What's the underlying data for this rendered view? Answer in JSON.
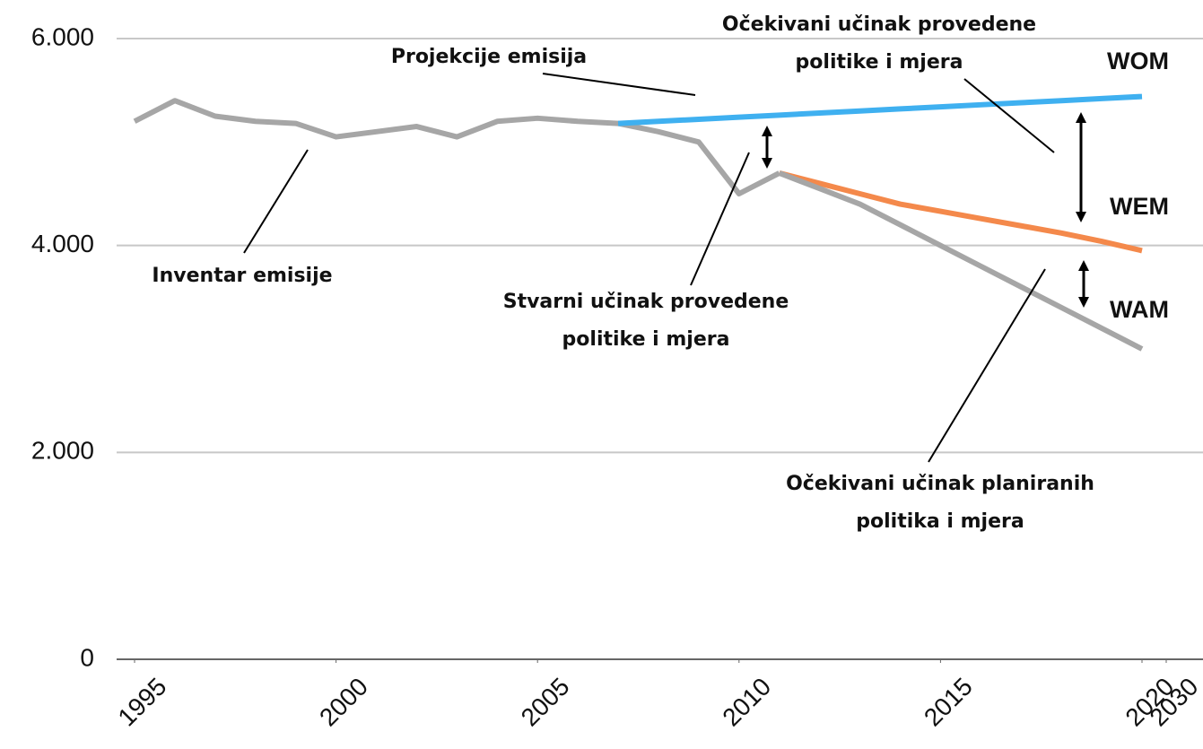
{
  "chart_data": {
    "type": "line",
    "xlim": [
      1995,
      2030
    ],
    "xticks": [
      1995,
      2000,
      2005,
      2010,
      2015,
      2020,
      2030
    ],
    "ylim": [
      0,
      6000
    ],
    "yticks": [
      0,
      {
        "value": 2000,
        "label": "2.000"
      },
      {
        "value": 4000,
        "label": "4.000"
      },
      {
        "value": 6000,
        "label": "6.000"
      }
    ],
    "grid": true,
    "series": [
      {
        "name": "Inventar emisije",
        "color": "#a6a6a6",
        "x": [
          1995,
          1996,
          1997,
          1998,
          1999,
          2000,
          2001,
          2002,
          2003,
          2004,
          2005,
          2006,
          2007,
          2008,
          2009,
          2010,
          2011
        ],
        "values": [
          5200,
          5400,
          5250,
          5200,
          5180,
          5050,
          5100,
          5150,
          5050,
          5200,
          5230,
          5200,
          5180,
          5100,
          5000,
          4500,
          4700
        ]
      },
      {
        "name": "WOM",
        "color": "#3fb0f0",
        "x": [
          2007,
          2008,
          2009,
          2010,
          2011,
          2012,
          2013,
          2014,
          2015,
          2016,
          2017,
          2018,
          2019,
          2020
        ],
        "values": [
          5180,
          5200,
          5220,
          5240,
          5260,
          5280,
          5300,
          5320,
          5340,
          5360,
          5380,
          5400,
          5420,
          5440
        ]
      },
      {
        "name": "WEM",
        "color": "#f4894b",
        "x": [
          2011,
          2012,
          2013,
          2014,
          2015,
          2016,
          2017,
          2018,
          2019,
          2020
        ],
        "values": [
          4700,
          4600,
          4500,
          4400,
          4330,
          4260,
          4190,
          4120,
          4040,
          3950
        ]
      },
      {
        "name": "WAM",
        "color": "#a6a6a6",
        "x": [
          2011,
          2012,
          2013,
          2014,
          2015,
          2016,
          2017,
          2018,
          2019,
          2020
        ],
        "values": [
          4700,
          4550,
          4400,
          4200,
          4000,
          3800,
          3600,
          3400,
          3200,
          3000
        ]
      }
    ],
    "annotations": [
      {
        "lines": [
          "Projekcije emisija"
        ]
      },
      {
        "lines": [
          "Očekivani učinak provedene",
          "politike i mjera"
        ]
      },
      {
        "lines": [
          "Stvarni učinak provedene",
          "politike i mjera"
        ]
      },
      {
        "lines": [
          "Očekivani učinak planiranih",
          "politika i mjera"
        ]
      }
    ]
  }
}
